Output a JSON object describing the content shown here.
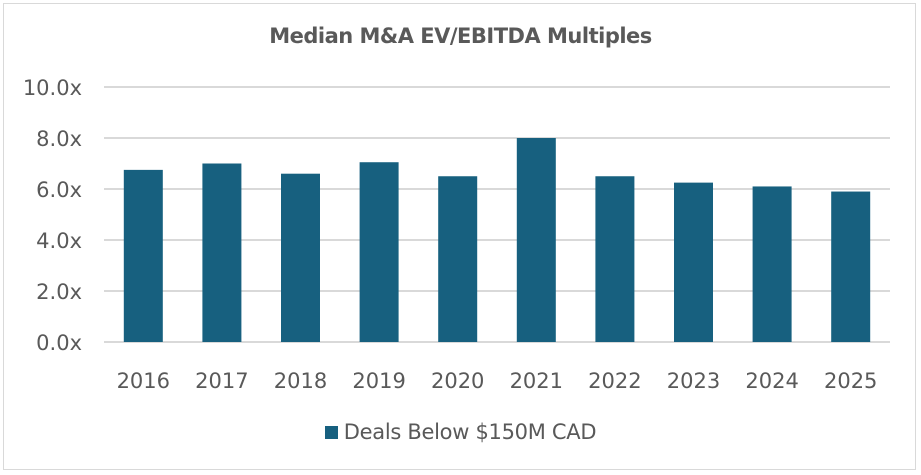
{
  "chart_data": {
    "type": "bar",
    "title": "Median M&A EV/EBITDA Multiples",
    "xlabel": "",
    "ylabel": "",
    "categories": [
      "2016",
      "2017",
      "2018",
      "2019",
      "2020",
      "2021",
      "2022",
      "2023",
      "2024",
      "2025"
    ],
    "series": [
      {
        "name": "Deals Below $150M CAD",
        "color": "#17607f",
        "values": [
          6.75,
          7.0,
          6.6,
          7.05,
          6.5,
          8.0,
          6.5,
          6.25,
          6.1,
          5.9
        ]
      }
    ],
    "ylim": [
      0,
      10
    ],
    "yticks": [
      0,
      2,
      4,
      6,
      8,
      10
    ],
    "ytick_labels": [
      "0.0x",
      "2.0x",
      "4.0x",
      "6.0x",
      "8.0x",
      "10.0x"
    ],
    "grid": true,
    "gridline_color": "#d9d9d9",
    "legend_position": "bottom"
  }
}
